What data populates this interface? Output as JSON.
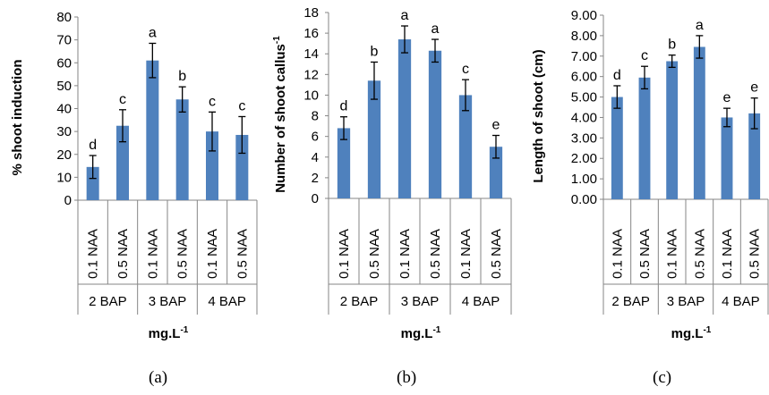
{
  "chart_data": [
    {
      "type": "bar",
      "panel_label": "(a)",
      "ylabel": "% shoot induction",
      "xlabel": "mg.L-1",
      "xlabel_main": "mg.L",
      "xlabel_sup": "-1",
      "ylim": [
        0,
        80
      ],
      "yticks": [
        "0",
        "10",
        "20",
        "30",
        "40",
        "50",
        "60",
        "70",
        "80"
      ],
      "groups": [
        "2 BAP",
        "3 BAP",
        "4 BAP"
      ],
      "categories": [
        "0.1 NAA",
        "0.5 NAA",
        "0.1 NAA",
        "0.5 NAA",
        "0.1 NAA",
        "0.5 NAA"
      ],
      "values": [
        14.5,
        32.5,
        61,
        44,
        30,
        28.5
      ],
      "errors": [
        5,
        7,
        7.5,
        5.5,
        8.5,
        8
      ],
      "significance": [
        "d",
        "c",
        "a",
        "b",
        "c",
        "c"
      ],
      "color": "#4f81bd"
    },
    {
      "type": "bar",
      "panel_label": "(b)",
      "ylabel": "Number of shoot callus-1",
      "ylabel_main": "Number of shoot callus",
      "ylabel_sup": "-1",
      "xlabel": "mg.L-1",
      "xlabel_main": "mg.L",
      "xlabel_sup": "-1",
      "ylim": [
        0,
        18
      ],
      "yticks": [
        "0",
        "2",
        "4",
        "6",
        "8",
        "10",
        "12",
        "14",
        "16",
        "18"
      ],
      "groups": [
        "2 BAP",
        "3 BAP",
        "4 BAP"
      ],
      "categories": [
        "0.1 NAA",
        "0.5 NAA",
        "0.1 NAA",
        "0.5 NAA",
        "0.1 NAA",
        "0.5 NAA"
      ],
      "values": [
        6.8,
        11.4,
        15.4,
        14.3,
        10,
        5
      ],
      "errors": [
        1.1,
        1.8,
        1.3,
        1.1,
        1.5,
        1.1
      ],
      "significance": [
        "d",
        "b",
        "a",
        "a",
        "c",
        "e"
      ],
      "color": "#4f81bd"
    },
    {
      "type": "bar",
      "panel_label": "(c)",
      "ylabel": "Length of shoot (cm)",
      "xlabel": "mg.L-1",
      "xlabel_main": "mg.L",
      "xlabel_sup": "-1",
      "ylim": [
        0,
        9
      ],
      "yticks": [
        "0.00",
        "1.00",
        "2.00",
        "3.00",
        "4.00",
        "5.00",
        "6.00",
        "7.00",
        "8.00",
        "9.00"
      ],
      "groups": [
        "2 BAP",
        "3 BAP",
        "4 BAP"
      ],
      "categories": [
        "0.1 NAA",
        "0.5 NAA",
        "0.1 NAA",
        "0.5 NAA",
        "0.1 NAA",
        "0.5 NAA"
      ],
      "values": [
        5.0,
        5.95,
        6.75,
        7.45,
        4.0,
        4.2
      ],
      "errors": [
        0.55,
        0.55,
        0.3,
        0.55,
        0.45,
        0.75
      ],
      "significance": [
        "d",
        "c",
        "b",
        "a",
        "e",
        "e"
      ],
      "color": "#4f81bd"
    }
  ]
}
